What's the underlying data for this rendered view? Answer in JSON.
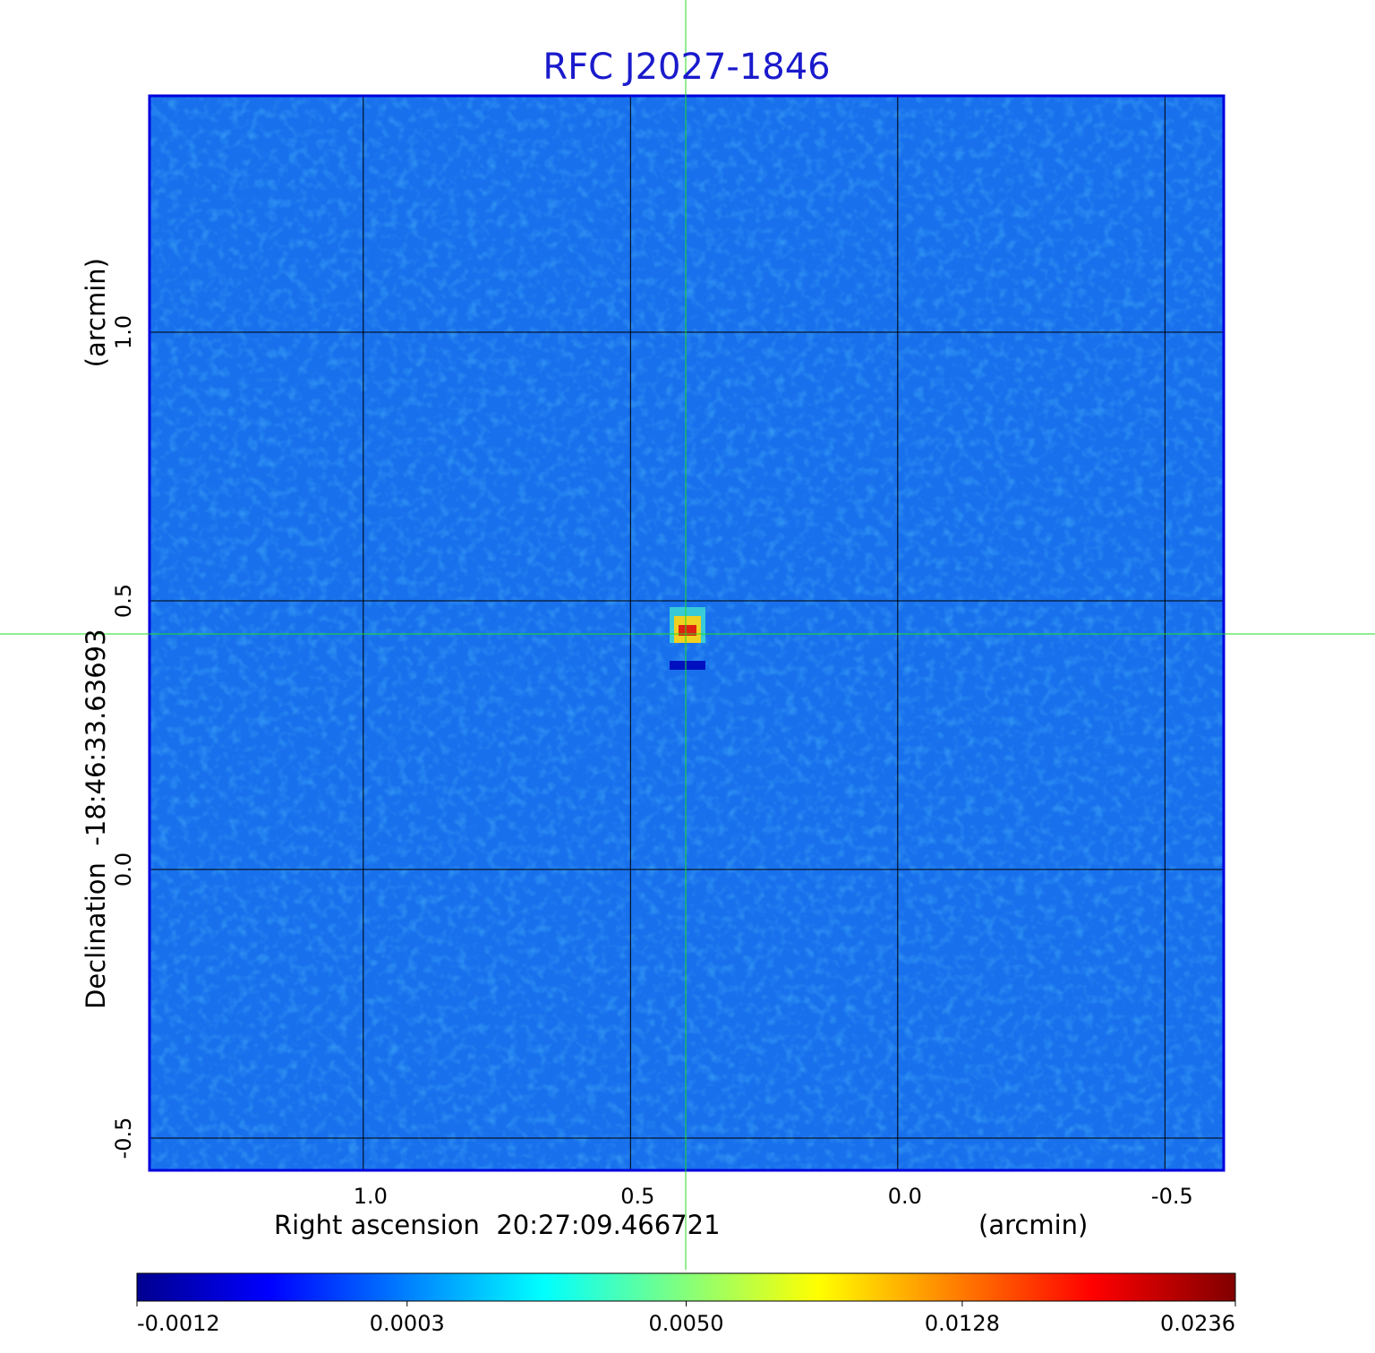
{
  "chart_data": {
    "type": "image",
    "title": "RFC J2027-1846",
    "x_label": "Right ascension  20:27:09.466721",
    "x_unit": "(arcmin)",
    "y_label": "Declination  -18:46:33.63693",
    "y_unit": "(arcmin)",
    "xlim": [
      1.4,
      -0.61
    ],
    "ylim": [
      -0.56,
      1.44
    ],
    "xticks": [
      {
        "value": 1,
        "label": "1.0"
      },
      {
        "value": 0.5,
        "label": "0.5"
      },
      {
        "value": 0,
        "label": "0.0"
      },
      {
        "value": -0.5,
        "label": "-0.5"
      }
    ],
    "yticks": [
      {
        "value": -0.5,
        "label": "-0.5"
      },
      {
        "value": 0,
        "label": "0.0"
      },
      {
        "value": 0.5,
        "label": "0.5"
      },
      {
        "value": 1,
        "label": "1.0"
      }
    ],
    "grid": true,
    "colorbar": {
      "scale": "sqrt",
      "lim": [
        -0.0012,
        0.0236
      ],
      "ticks": [
        {
          "value": -0.0012,
          "label": "-0.0012"
        },
        {
          "value": 0.0003,
          "label": "0.0003"
        },
        {
          "value": 0.005,
          "label": "0.0050"
        },
        {
          "value": 0.0128,
          "label": "0.0128"
        },
        {
          "value": 0.0236,
          "label": "0.0236"
        }
      ]
    }
  }
}
